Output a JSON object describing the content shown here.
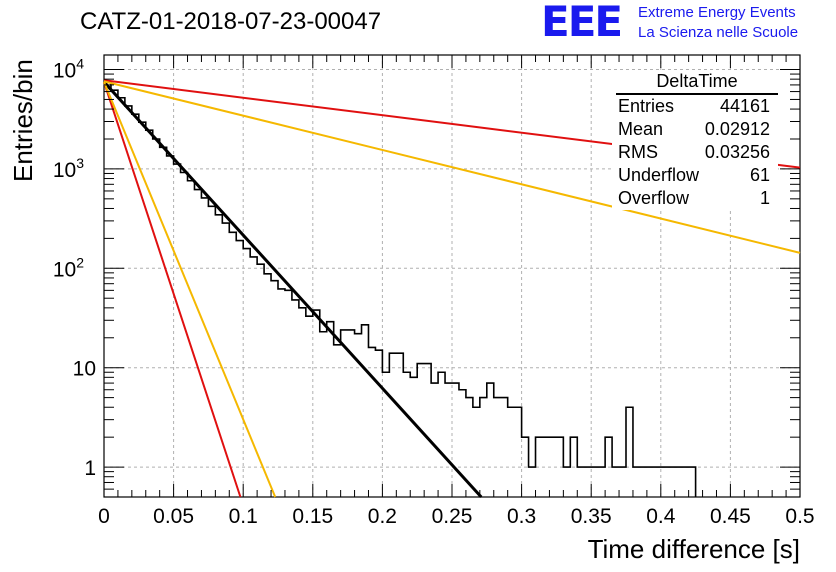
{
  "title": "CATZ-01-2018-07-23-00047",
  "logo": {
    "mark": "EEE",
    "line1": "Extreme Energy Events",
    "line2": "La Scienza nelle Scuole"
  },
  "stats": {
    "name": "DeltaTime",
    "rows": [
      {
        "label": "Entries",
        "value": "44161"
      },
      {
        "label": "Mean",
        "value": "0.02912"
      },
      {
        "label": "RMS",
        "value": "0.03256"
      },
      {
        "label": "Underflow",
        "value": "61"
      },
      {
        "label": "Overflow",
        "value": "1"
      }
    ]
  },
  "chart_data": {
    "type": "line",
    "title": "CATZ-01-2018-07-23-00047",
    "xlabel": "Time difference [s]",
    "ylabel": "Entries/bin",
    "xlim": [
      0,
      0.5
    ],
    "ylim": [
      0.5,
      14000
    ],
    "ylog": true,
    "grid": true,
    "x_ticks": [
      "0",
      "0.05",
      "0.1",
      "0.15",
      "0.2",
      "0.25",
      "0.3",
      "0.35",
      "0.4",
      "0.45",
      "0.5"
    ],
    "y_ticks": [
      {
        "value": 1,
        "label": "1"
      },
      {
        "value": 10,
        "label": "10"
      },
      {
        "value": 100,
        "label": "10^2"
      },
      {
        "value": 1000,
        "label": "10^3"
      },
      {
        "value": 10000,
        "label": "10^4"
      }
    ],
    "histogram": {
      "name": "DeltaTime",
      "color": "#000000",
      "bin_width": 0.005,
      "x_start": 0,
      "counts": [
        7500,
        6200,
        5200,
        4300,
        3550,
        2950,
        2450,
        2000,
        1650,
        1350,
        1120,
        920,
        760,
        620,
        510,
        420,
        345,
        285,
        230,
        190,
        158,
        130,
        110,
        88,
        75,
        62,
        60,
        48,
        40,
        33,
        38,
        23,
        29,
        17,
        24,
        24,
        22,
        27,
        16,
        15,
        9,
        14,
        14,
        9,
        8,
        11,
        11,
        7,
        9,
        7,
        7,
        6,
        5,
        4,
        5,
        7,
        5,
        5,
        4,
        4,
        2,
        1,
        2,
        2,
        2,
        2,
        1,
        2,
        1,
        1,
        1,
        1,
        2,
        1,
        1,
        4,
        1,
        1,
        1,
        1,
        1,
        1,
        1,
        1,
        1
      ]
    },
    "lines": [
      {
        "name": "fit",
        "color": "#000000",
        "x": [
          0,
          0.271
        ],
        "y": [
          7500,
          0.5
        ]
      },
      {
        "name": "red-fast",
        "color": "#e01010",
        "x": [
          0,
          0.098
        ],
        "y": [
          7500,
          0.5
        ]
      },
      {
        "name": "orange-fast",
        "color": "#f5b800",
        "x": [
          0,
          0.123
        ],
        "y": [
          7500,
          0.5
        ]
      },
      {
        "name": "red-slow",
        "color": "#e01010",
        "x": [
          0,
          0.5
        ],
        "y": [
          7800,
          1030
        ]
      },
      {
        "name": "orange-slow",
        "color": "#f5b800",
        "x": [
          0,
          0.5
        ],
        "y": [
          7600,
          143
        ]
      }
    ]
  }
}
